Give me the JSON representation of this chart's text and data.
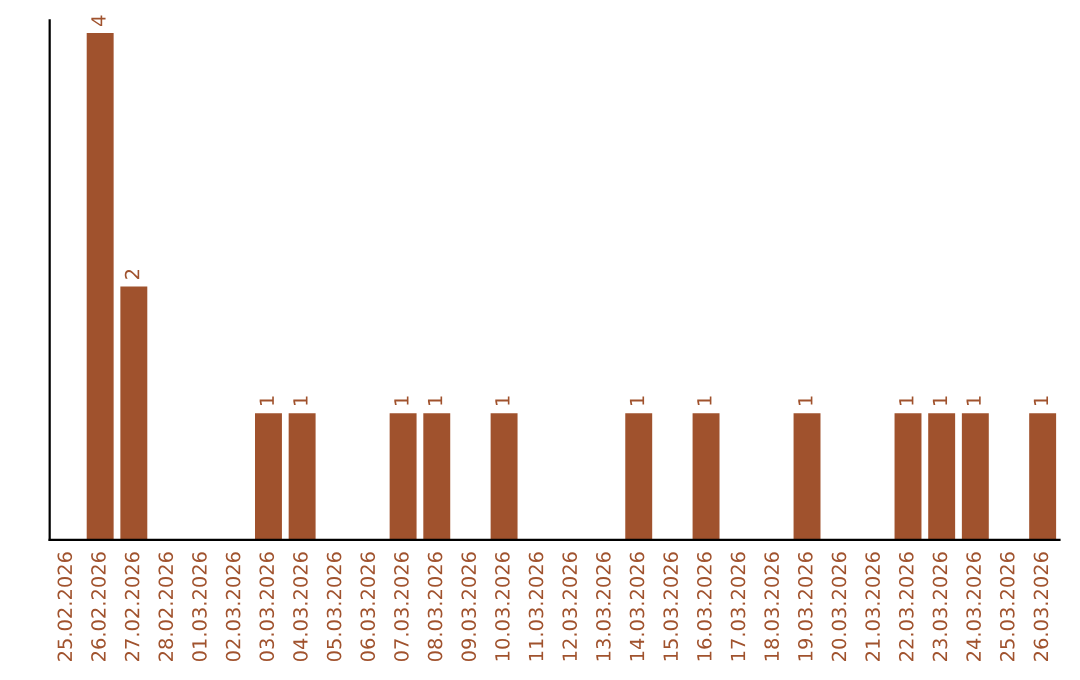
{
  "chart_data": {
    "type": "bar",
    "categories": [
      "25.02.2026",
      "26.02.2026",
      "27.02.2026",
      "28.02.2026",
      "01.03.2026",
      "02.03.2026",
      "03.03.2026",
      "04.03.2026",
      "05.03.2026",
      "06.03.2026",
      "07.03.2026",
      "08.03.2026",
      "09.03.2026",
      "10.03.2026",
      "11.03.2026",
      "12.03.2026",
      "13.03.2026",
      "14.03.2026",
      "15.03.2026",
      "16.03.2026",
      "17.03.2026",
      "18.03.2026",
      "19.03.2026",
      "20.03.2026",
      "21.03.2026",
      "22.03.2026",
      "23.03.2026",
      "24.03.2026",
      "25.03.2026",
      "26.03.2026"
    ],
    "values": [
      null,
      4,
      2,
      null,
      null,
      null,
      1,
      1,
      null,
      null,
      1,
      1,
      null,
      1,
      null,
      null,
      null,
      1,
      null,
      1,
      null,
      null,
      1,
      null,
      null,
      1,
      1,
      1,
      null,
      1
    ],
    "color": "#a0522d",
    "ylim": [
      0,
      4.1
    ],
    "data_labels": true,
    "grid": false,
    "legend": false
  }
}
